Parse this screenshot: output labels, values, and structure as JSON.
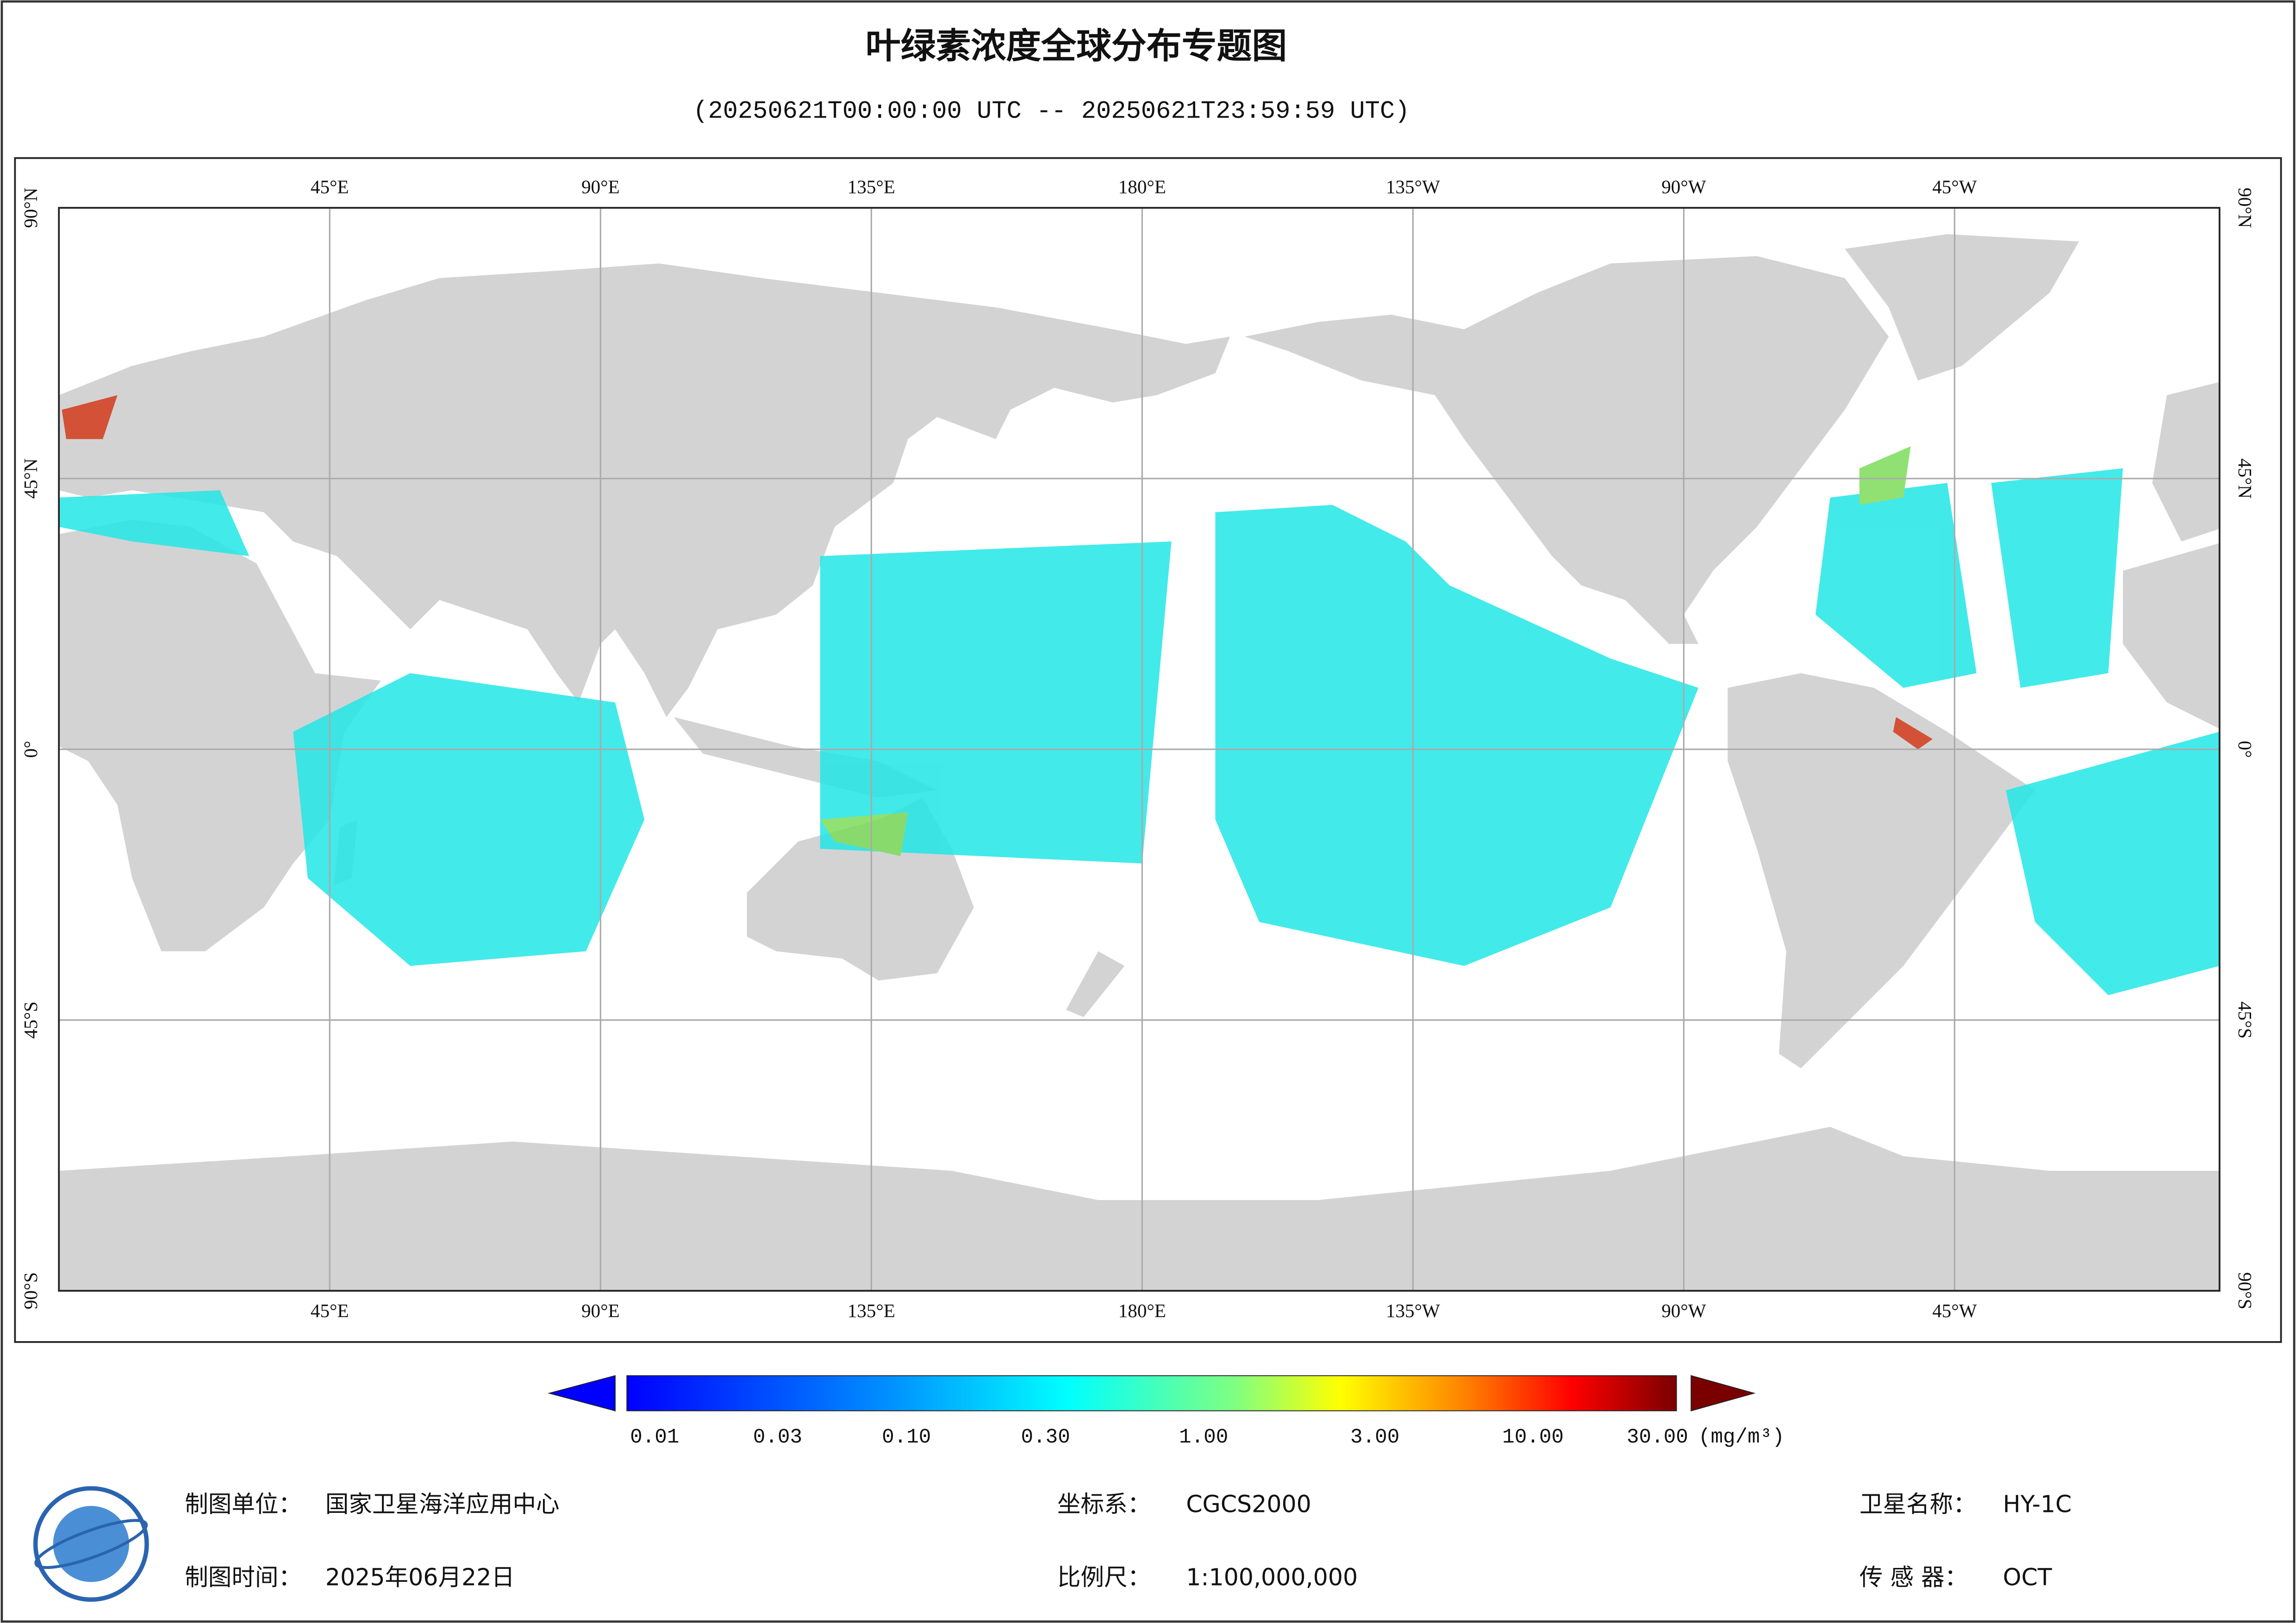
{
  "header": {
    "title": "叶绿素浓度全球分布专题图",
    "subtitle": "(20250621T00:00:00 UTC -- 20250621T23:59:59 UTC)"
  },
  "map": {
    "lon_labels": [
      "45°E",
      "90°E",
      "135°E",
      "180°E",
      "135°W",
      "90°W",
      "45°W"
    ],
    "lat_labels": [
      "90°N",
      "45°N",
      "0°",
      "45°S",
      "90°S"
    ]
  },
  "colorbar": {
    "labels": [
      "0.01",
      "0.03",
      "0.10",
      "0.30",
      "1.00",
      "3.00",
      "10.00",
      "30.00"
    ],
    "unit": "(mg/m³)"
  },
  "footer": {
    "unit_label": "制图单位：",
    "unit": "国家卫星海洋应用中心",
    "date_label": "制图时间：",
    "date": "2025年06月22日",
    "crs_label": "坐标系：",
    "crs": "CGCS2000",
    "scale_label": "比例尺：",
    "scale": "1:100,000,000",
    "satellite_label": "卫星名称：",
    "satellite": "HY-1C",
    "sensor_label": "传 感 器：",
    "sensor": "OCT"
  }
}
